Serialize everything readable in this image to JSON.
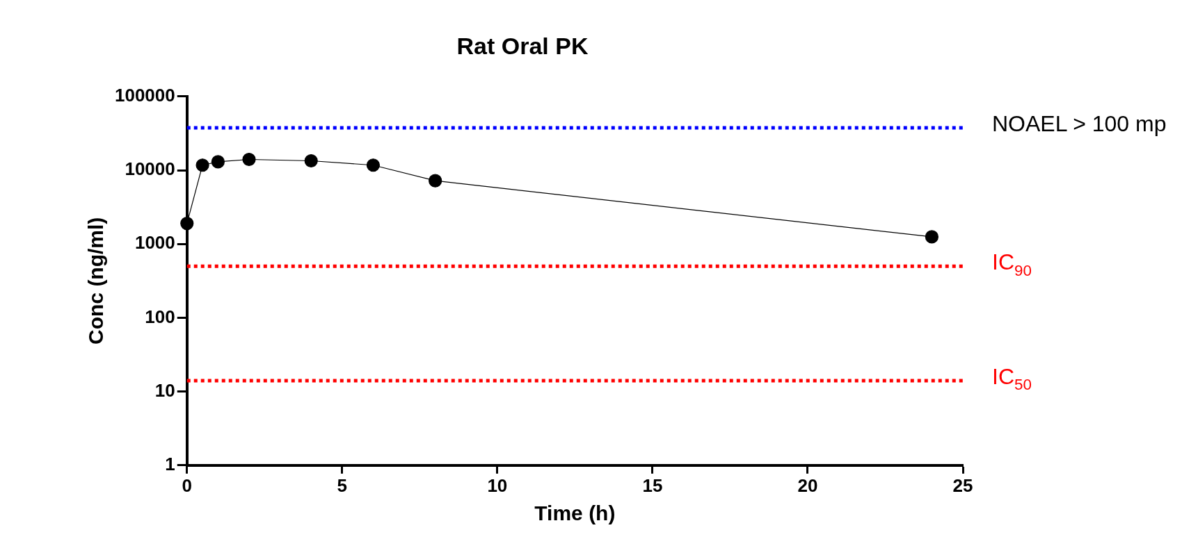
{
  "chart_data": {
    "type": "line",
    "title": "Rat Oral PK",
    "xlabel": "Time (h)",
    "ylabel": "Conc (ng/ml)",
    "x": [
      0,
      0.5,
      1,
      2,
      4,
      6,
      8,
      24
    ],
    "series": [
      {
        "color": "#000000",
        "values": [
          1900,
          11700,
          13000,
          14000,
          13400,
          11700,
          7200,
          1250
        ]
      }
    ],
    "xlim": [
      0,
      25
    ],
    "xticks": [
      0,
      5,
      10,
      15,
      20,
      25
    ],
    "ylim": [
      1,
      100000
    ],
    "yticks": [
      1,
      10,
      100,
      1000,
      10000,
      100000
    ],
    "log": "y",
    "grid": false,
    "legend": false,
    "marker": "circle",
    "line_style": "solid",
    "ref_lines": [
      {
        "axis": "y",
        "value": 37500,
        "label": "NOAEL > 100 mp",
        "color": "#0000ff",
        "line_style": "dotted"
      },
      {
        "axis": "y",
        "value": 500,
        "label": "IC$_{90}$",
        "color": "#ff0000",
        "line_style": "dotted"
      },
      {
        "axis": "y",
        "value": 14,
        "label": "IC$_{50}$",
        "color": "#ff0000",
        "line_style": "dotted"
      }
    ]
  }
}
